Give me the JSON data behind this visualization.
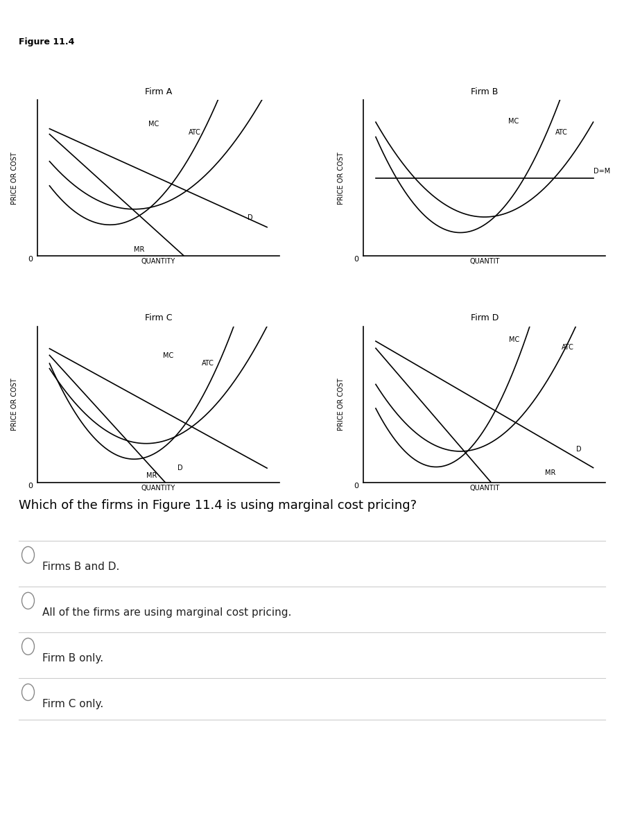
{
  "figure_title": "Figure 11.4",
  "question": "Which of the firms in Figure 11.4 is using marginal cost pricing?",
  "choices": [
    "Firms B and D.",
    "All of the firms are using marginal cost pricing.",
    "Firm B only.",
    "Firm C only."
  ],
  "firms": [
    "Firm A",
    "Firm B",
    "Firm C",
    "Firm D"
  ],
  "bg_color": "#ffffff",
  "curve_color": "#000000",
  "axis_label_color": "#000000",
  "grid_color": "#cccccc"
}
